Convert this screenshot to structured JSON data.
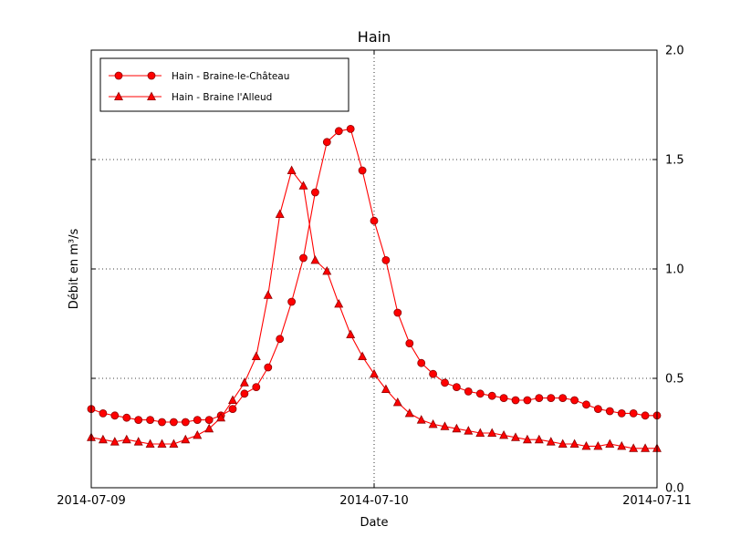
{
  "chart_data": {
    "type": "line",
    "title": "Hain",
    "xlabel": "Date",
    "ylabel": "Débit en m³/s",
    "x_unit": "hours since 2014-07-09 00:00",
    "xlim": [
      0,
      48
    ],
    "ylim": [
      0,
      2
    ],
    "grid": true,
    "legend_position": "upper left",
    "xticks": [
      {
        "value": 0,
        "label": "2014-07-09"
      },
      {
        "value": 24,
        "label": "2014-07-10"
      },
      {
        "value": 48,
        "label": "2014-07-11"
      }
    ],
    "yticks": [
      {
        "value": 0.0,
        "label": "0.0"
      },
      {
        "value": 0.5,
        "label": "0.5"
      },
      {
        "value": 1.0,
        "label": "1.0"
      },
      {
        "value": 1.5,
        "label": "1.5"
      },
      {
        "value": 2.0,
        "label": "2.0"
      }
    ],
    "series": [
      {
        "name": "Hain - Braine-le-Château",
        "marker": "circle",
        "color": "#ff0000",
        "x": [
          0,
          1,
          2,
          3,
          4,
          5,
          6,
          7,
          8,
          9,
          10,
          11,
          12,
          13,
          14,
          15,
          16,
          17,
          18,
          19,
          20,
          21,
          22,
          23,
          24,
          25,
          26,
          27,
          28,
          29,
          30,
          31,
          32,
          33,
          34,
          35,
          36,
          37,
          38,
          39,
          40,
          41,
          42,
          43,
          44,
          45,
          46,
          47,
          48
        ],
        "y": [
          0.36,
          0.34,
          0.33,
          0.32,
          0.31,
          0.31,
          0.3,
          0.3,
          0.3,
          0.31,
          0.31,
          0.33,
          0.36,
          0.43,
          0.46,
          0.55,
          0.68,
          0.85,
          1.05,
          1.35,
          1.58,
          1.63,
          1.64,
          1.45,
          1.22,
          1.04,
          0.8,
          0.66,
          0.57,
          0.52,
          0.48,
          0.46,
          0.44,
          0.43,
          0.42,
          0.41,
          0.4,
          0.4,
          0.41,
          0.41,
          0.41,
          0.4,
          0.38,
          0.36,
          0.35,
          0.34,
          0.34,
          0.33,
          0.33
        ]
      },
      {
        "name": "Hain - Braine l'Alleud",
        "marker": "triangle",
        "color": "#ff0000",
        "x": [
          0,
          1,
          2,
          3,
          4,
          5,
          6,
          7,
          8,
          9,
          10,
          11,
          12,
          13,
          14,
          15,
          16,
          17,
          18,
          19,
          20,
          21,
          22,
          23,
          24,
          25,
          26,
          27,
          28,
          29,
          30,
          31,
          32,
          33,
          34,
          35,
          36,
          37,
          38,
          39,
          40,
          41,
          42,
          43,
          44,
          45,
          46,
          47,
          48
        ],
        "y": [
          0.23,
          0.22,
          0.21,
          0.22,
          0.21,
          0.2,
          0.2,
          0.2,
          0.22,
          0.24,
          0.27,
          0.32,
          0.4,
          0.48,
          0.6,
          0.88,
          1.25,
          1.45,
          1.38,
          1.04,
          0.99,
          0.84,
          0.7,
          0.6,
          0.52,
          0.45,
          0.39,
          0.34,
          0.31,
          0.29,
          0.28,
          0.27,
          0.26,
          0.25,
          0.25,
          0.24,
          0.23,
          0.22,
          0.22,
          0.21,
          0.2,
          0.2,
          0.19,
          0.19,
          0.2,
          0.19,
          0.18,
          0.18,
          0.18
        ]
      }
    ]
  }
}
